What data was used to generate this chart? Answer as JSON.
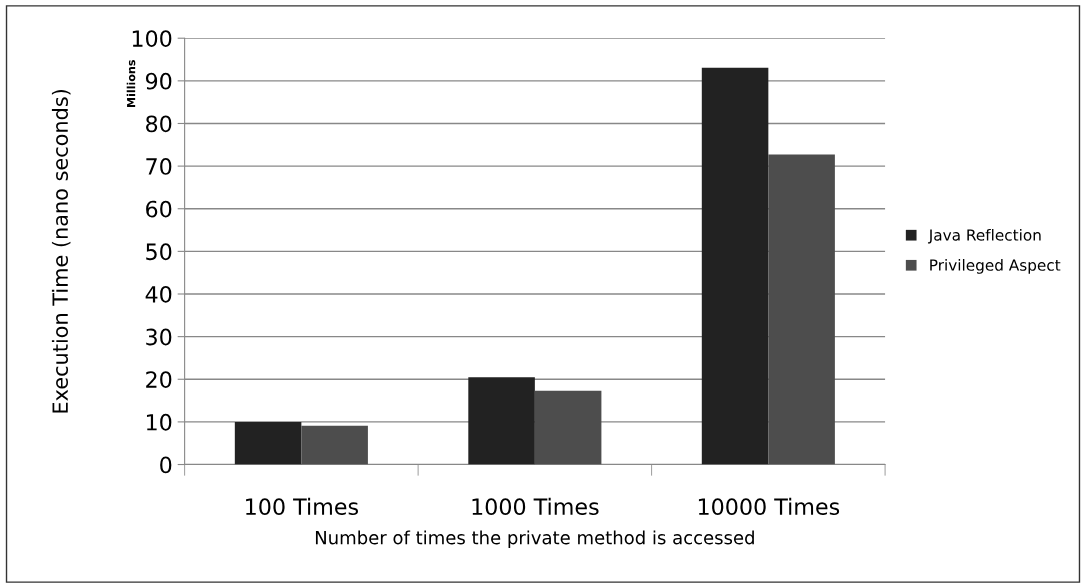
{
  "chart_data": {
    "type": "bar",
    "categories": [
      "100 Times",
      "1000 Times",
      "10000 Times"
    ],
    "series": [
      {
        "name": "Java Reflection",
        "color": "#222222",
        "values": [
          10.0,
          20.5,
          93.1
        ]
      },
      {
        "name": "Privileged Aspect",
        "color": "#4d4d4d",
        "values": [
          9.1,
          17.3,
          72.7
        ]
      }
    ],
    "xlabel": "Number of times the private method is accessed",
    "ylabel": "Execution Time (nano seconds)",
    "annotations": [
      "Millions"
    ],
    "ylim": [
      0,
      100
    ],
    "yticks": [
      0,
      10,
      20,
      30,
      40,
      50,
      60,
      70,
      80,
      90,
      100
    ],
    "grid": "y",
    "legend": "right"
  }
}
